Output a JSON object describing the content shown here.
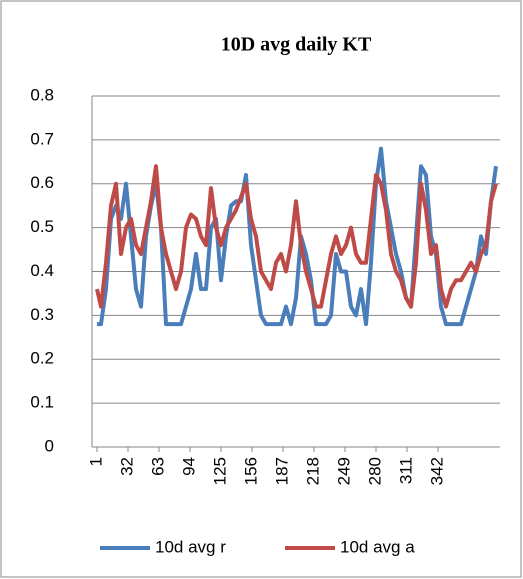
{
  "chart_data": {
    "type": "line",
    "title": "10D avg daily KT",
    "x": [
      1,
      5,
      10,
      15,
      20,
      25,
      30,
      35,
      40,
      45,
      50,
      55,
      60,
      65,
      70,
      75,
      80,
      85,
      90,
      95,
      100,
      105,
      110,
      115,
      120,
      125,
      130,
      135,
      140,
      145,
      150,
      155,
      160,
      165,
      170,
      175,
      180,
      185,
      190,
      195,
      200,
      205,
      210,
      215,
      220,
      225,
      230,
      235,
      240,
      245,
      250,
      255,
      260,
      265,
      270,
      275,
      280,
      285,
      290,
      295,
      300,
      305,
      310,
      315,
      320,
      325,
      330,
      335,
      340,
      345,
      350,
      355,
      360,
      365,
      370,
      375,
      380,
      385,
      390,
      395,
      400
    ],
    "series": [
      {
        "name": "10d avg r",
        "color": "#4a7ebb",
        "values": [
          0.28,
          0.28,
          0.36,
          0.52,
          0.55,
          0.52,
          0.6,
          0.48,
          0.36,
          0.32,
          0.48,
          0.55,
          0.6,
          0.5,
          0.28,
          0.28,
          0.28,
          0.28,
          0.32,
          0.36,
          0.44,
          0.36,
          0.36,
          0.5,
          0.52,
          0.38,
          0.48,
          0.55,
          0.56,
          0.56,
          0.62,
          0.46,
          0.38,
          0.3,
          0.28,
          0.28,
          0.28,
          0.28,
          0.32,
          0.28,
          0.34,
          0.48,
          0.44,
          0.38,
          0.28,
          0.28,
          0.28,
          0.3,
          0.44,
          0.4,
          0.4,
          0.32,
          0.3,
          0.36,
          0.28,
          0.42,
          0.6,
          0.68,
          0.56,
          0.5,
          0.44,
          0.4,
          0.34,
          0.32,
          0.48,
          0.64,
          0.62,
          0.48,
          0.44,
          0.32,
          0.28,
          0.28,
          0.28,
          0.28,
          0.32,
          0.36,
          0.4,
          0.48,
          0.44,
          0.56,
          0.64
        ]
      },
      {
        "name": "10d avg a",
        "color": "#be4b48",
        "values": [
          0.36,
          0.32,
          0.42,
          0.55,
          0.6,
          0.44,
          0.5,
          0.52,
          0.46,
          0.44,
          0.5,
          0.56,
          0.64,
          0.5,
          0.44,
          0.4,
          0.36,
          0.4,
          0.5,
          0.53,
          0.52,
          0.48,
          0.46,
          0.59,
          0.5,
          0.46,
          0.5,
          0.52,
          0.54,
          0.57,
          0.6,
          0.52,
          0.48,
          0.4,
          0.38,
          0.36,
          0.42,
          0.44,
          0.4,
          0.46,
          0.56,
          0.46,
          0.4,
          0.36,
          0.32,
          0.32,
          0.38,
          0.44,
          0.48,
          0.44,
          0.46,
          0.5,
          0.44,
          0.42,
          0.42,
          0.52,
          0.62,
          0.6,
          0.54,
          0.44,
          0.4,
          0.38,
          0.34,
          0.32,
          0.42,
          0.6,
          0.54,
          0.44,
          0.46,
          0.36,
          0.32,
          0.36,
          0.38,
          0.38,
          0.4,
          0.42,
          0.4,
          0.44,
          0.46,
          0.56,
          0.6
        ]
      }
    ],
    "xlim": [
      -4,
      404
    ],
    "xticks": [
      1,
      32,
      63,
      94,
      125,
      156,
      187,
      218,
      249,
      280,
      311,
      342
    ],
    "ylim": [
      0,
      0.8
    ],
    "yticks": [
      0,
      0.1,
      0.2,
      0.3,
      0.4,
      0.5,
      0.6,
      0.7,
      0.8
    ],
    "grid": true,
    "legend": "bottom"
  }
}
